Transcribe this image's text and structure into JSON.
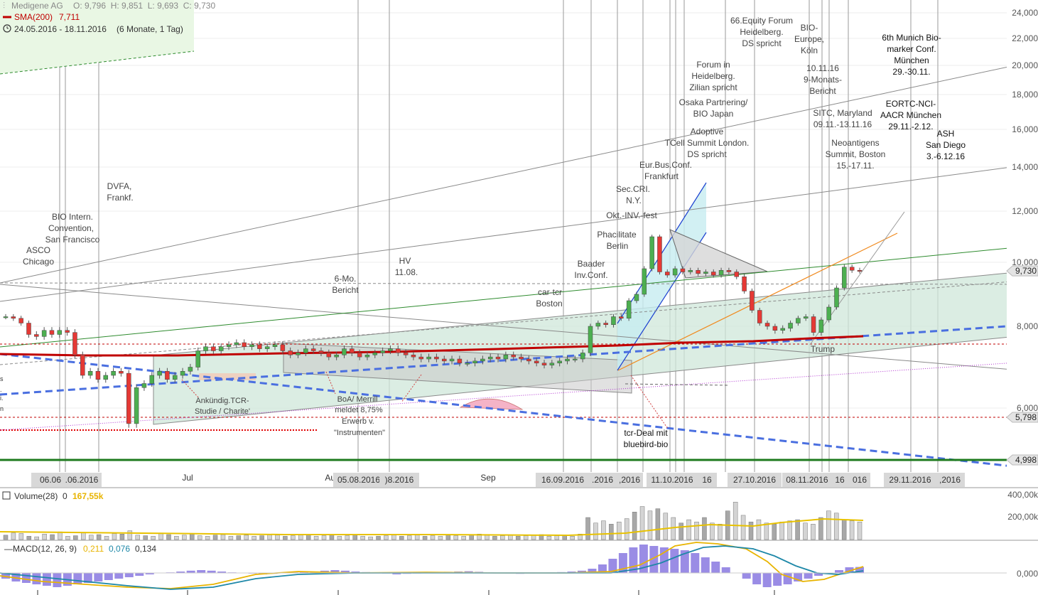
{
  "header": {
    "instrument": "Medigene AG",
    "ohlc": "O: 9,796  H: 9,851  L: 9,693  C: 9,730",
    "sma_label": "SMA(200)",
    "sma_value": "7,711",
    "range": "24.05.2016 - 18.11.2016",
    "period": "(6 Monate, 1 Tag)"
  },
  "colors": {
    "up": "#4caf50",
    "down": "#e53935",
    "sma": "#c00000",
    "volume": "#d9d9d9",
    "macd": "#e8b400",
    "signal": "#1e88a8",
    "hist": "#8878e0"
  },
  "price_axis": {
    "labels": [
      "24,000",
      "22,000",
      "20,000",
      "18,000",
      "16,000",
      "14,000",
      "12,000",
      "10,000",
      "8,000",
      "6,000"
    ],
    "tags": [
      "9,730",
      "5,798",
      "4,998"
    ]
  },
  "x_axis": {
    "months": [
      "Jul",
      "Aug",
      "Sep"
    ],
    "dates": [
      "06.06.2016",
      ".06.2016",
      "05.08.2016",
      ")8.2016",
      "16.09.2016",
      ".2016",
      ",2016",
      "11.10.2016",
      "16",
      "27.10.2016",
      "08.11.2016",
      "16",
      "016",
      "29.11.2016",
      ",2016"
    ]
  },
  "annotations": [
    "ASCO",
    "Chicago",
    "BIO Intern.",
    "Convention,",
    "San Francisco",
    "DVFA,",
    "Frankf.",
    "HV",
    "11.08.",
    "6-Mo.",
    "Bericht",
    "car-tcr",
    "Boston",
    "Baader",
    "Inv.Conf.",
    "Phacilitate",
    "Berlin",
    "Okt.-INV.-fest",
    "Sec.CRI.",
    "N.Y.",
    "Eur.Bus.Conf.",
    "Frankfurt",
    "Adoptive",
    "TCell Summit London.",
    "DS spricht",
    "Osaka Partnering/",
    "BIO Japan",
    "Forum in",
    "Heidelberg.",
    "Zilian spricht",
    "66.Equity Forum",
    "Heidelberg.",
    "DS spricht",
    "BIO-",
    "Europe,",
    "Köln",
    "10.11.16",
    "9-Monats-",
    "Bericht",
    "SITC, Maryland",
    "09.11.-13.11.16",
    "Neoantigens",
    "Summit, Boston",
    "15.-17.11.",
    "6th Munich Bio-",
    "marker Conf.",
    "München",
    "29.-30.11.",
    "EORTC-NCI-",
    "AACR München",
    "29.11.-2.12.",
    "ASH",
    "San Diego",
    "3.-6.12.16",
    "Ankündig.TCR-",
    "Studie / Charite'",
    "BoA/ Merrill",
    "meldet 8,75%",
    "Erwerb v.",
    "\"Instrumenten\"",
    "tcr-Deal mit",
    "bluebird-bio",
    "Trump"
  ],
  "volume": {
    "label": "Volume(28)",
    "value": "0",
    "avg": "167,55k",
    "axis": [
      "400,00k",
      "200,00k"
    ]
  },
  "macd": {
    "label": "MACD(12, 26, 9)",
    "v1": "0,211",
    "v2": "0,076",
    "v3": "0,134",
    "axis": "0,000"
  },
  "chart_data": {
    "type": "line",
    "title": "Medigene AG",
    "series": [
      {
        "name": "Medigene AG",
        "values": [
          8.3,
          8.25,
          8.1,
          7.8,
          7.75,
          7.9,
          7.8,
          7.9,
          7.85,
          7.3,
          6.8,
          6.9,
          6.7,
          6.8,
          6.9,
          6.85,
          5.7,
          6.5,
          6.6,
          6.8,
          6.9,
          6.7,
          6.8,
          6.9,
          7.0,
          7.4,
          7.5,
          7.4,
          7.5,
          7.55,
          7.6,
          7.5,
          7.55,
          7.45,
          7.5,
          7.55,
          7.4,
          7.3,
          7.35,
          7.45,
          7.4,
          7.35,
          7.25,
          7.3,
          7.45,
          7.35,
          7.25,
          7.3,
          7.35,
          7.4,
          7.45,
          7.35,
          7.3,
          7.25,
          7.2,
          7.25,
          7.2,
          7.15,
          7.2,
          7.1,
          7.1,
          7.15,
          7.2,
          7.25,
          7.2,
          7.3,
          7.25,
          7.2,
          7.15,
          7.1,
          7.05,
          7.1,
          7.15,
          7.2,
          7.2,
          7.35,
          8.0,
          8.1,
          8.05,
          8.3,
          8.25,
          8.8,
          9.0,
          9.8,
          11.0,
          9.7,
          9.6,
          9.8,
          9.7,
          9.75,
          9.65,
          9.7,
          9.6,
          9.75,
          9.7,
          9.55,
          9.1,
          8.5,
          8.1,
          8.0,
          7.9,
          7.95,
          8.1,
          8.25,
          8.3,
          7.85,
          8.2,
          8.6,
          9.2,
          9.85,
          9.75,
          9.73
        ]
      },
      {
        "name": "SMA(200)",
        "values": [
          7.5,
          7.48,
          7.5,
          7.52,
          7.55,
          7.58,
          7.6,
          7.62,
          7.65,
          7.66,
          7.7,
          7.711
        ]
      }
    ],
    "x_start": "24.05.2016",
    "x_end": "18.11.2016",
    "ylim": [
      4.5,
      24.5
    ],
    "volume_values": [
      40,
      60,
      55,
      30,
      25,
      50,
      45,
      70,
      30,
      35,
      60,
      40,
      45,
      30,
      55,
      50,
      80,
      40,
      35,
      30,
      60,
      45,
      30,
      40,
      50,
      35,
      30,
      40,
      45,
      30,
      35,
      40,
      30,
      35,
      45,
      40,
      30,
      35,
      40,
      45,
      30,
      35,
      40,
      30,
      35,
      40,
      30,
      25,
      30,
      35,
      40,
      30,
      35,
      40,
      30,
      35,
      30,
      40,
      35,
      30,
      45,
      50,
      40,
      30,
      35,
      40,
      30,
      35,
      40,
      45,
      30,
      35,
      40,
      30,
      50,
      200,
      150,
      170,
      140,
      160,
      190,
      250,
      300,
      260,
      280,
      240,
      200,
      150,
      180,
      160,
      200,
      150,
      140,
      260,
      340,
      220,
      160,
      180,
      150,
      140,
      160,
      170,
      180,
      150,
      140,
      200,
      260,
      240,
      180,
      170,
      160
    ],
    "macd_values": [
      -0.2,
      -0.3,
      -0.35,
      -0.4,
      -0.45,
      -0.5,
      -0.45,
      -0.4,
      -0.35,
      -0.3,
      -0.25,
      -0.2,
      -0.15,
      -0.1,
      -0.05,
      0,
      0.02,
      0.05,
      0.08,
      0.1,
      0.08,
      0.05,
      0.02,
      0,
      -0.02,
      -0.05,
      -0.03,
      0,
      0.02,
      0.03,
      0.05,
      0.08,
      0.1,
      0.08,
      0.05,
      0.03,
      0,
      -0.02,
      -0.05,
      -0.03,
      -0.02,
      0,
      0.02,
      0.04,
      0.05,
      0.06,
      0.04,
      0.02,
      0,
      -0.02,
      -0.03,
      -0.02,
      0,
      0.02,
      0.03,
      0.05,
      0.08,
      0.15,
      0.3,
      0.5,
      0.7,
      0.9,
      1.0,
      0.95,
      0.9,
      0.85,
      0.8,
      0.7,
      0.55,
      0.4,
      0.2,
      0,
      -0.2,
      -0.4,
      -0.5,
      -0.45,
      -0.4,
      -0.3,
      -0.2,
      -0.1,
      0,
      0.1,
      0.2,
      0.211
    ]
  }
}
